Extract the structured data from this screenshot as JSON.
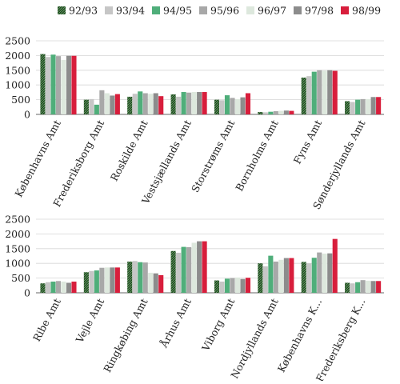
{
  "colors": {
    "92/93": "#2e5a2e",
    "93/94": "#c6c6c6",
    "94/95": "#4fae7a",
    "95/96": "#a8a8a8",
    "96/97": "#dde8dd",
    "97/98": "#8c8c8c",
    "98/99": "#d81e3c"
  },
  "chart_data": [
    {
      "type": "bar",
      "panel": "top",
      "series_names": [
        "92/93",
        "93/94",
        "94/95",
        "95/96",
        "96/97",
        "97/98",
        "98/99"
      ],
      "categories": [
        "Københavns Amt",
        "Frederiksborg Amt",
        "Roskilde Amt",
        "Vestsjællands Amt",
        "Storstrøms Amt",
        "Bornholms Amt",
        "Fyns Amt",
        "Sønderjyllands Amt"
      ],
      "series": [
        {
          "name": "92/93",
          "values": [
            2050,
            500,
            600,
            680,
            500,
            80,
            1250,
            450
          ]
        },
        {
          "name": "93/94",
          "values": [
            1950,
            520,
            700,
            600,
            480,
            70,
            1300,
            420
          ]
        },
        {
          "name": "94/95",
          "values": [
            2030,
            330,
            780,
            760,
            650,
            90,
            1450,
            500
          ]
        },
        {
          "name": "95/96",
          "values": [
            1980,
            820,
            720,
            740,
            560,
            110,
            1500,
            520
          ]
        },
        {
          "name": "96/97",
          "values": [
            1850,
            720,
            700,
            760,
            520,
            120,
            1480,
            520
          ]
        },
        {
          "name": "97/98",
          "values": [
            1990,
            640,
            720,
            760,
            580,
            130,
            1500,
            590
          ]
        },
        {
          "name": "98/99",
          "values": [
            1990,
            690,
            620,
            760,
            720,
            120,
            1480,
            590
          ]
        }
      ],
      "y_ticks": [
        "0",
        "500",
        "1000",
        "1500",
        "2000",
        "2500"
      ],
      "ylim": [
        0,
        2500
      ],
      "legend": "top"
    },
    {
      "type": "bar",
      "panel": "bottom",
      "categories": [
        "Ribe Amt",
        "Vejle Amt",
        "Ringkøbing Amt",
        "Århus Amt",
        "Viborg Amt",
        "Nordjyllands Amt",
        "Københavns K...",
        "Frederiksberg K..."
      ],
      "series": [
        {
          "name": "92/93",
          "values": [
            320,
            700,
            1060,
            1420,
            420,
            1000,
            1050,
            340
          ]
        },
        {
          "name": "93/94",
          "values": [
            360,
            740,
            1080,
            1360,
            380,
            900,
            1000,
            320
          ]
        },
        {
          "name": "94/95",
          "values": [
            380,
            760,
            1040,
            1560,
            480,
            1260,
            1190,
            360
          ]
        },
        {
          "name": "95/96",
          "values": [
            400,
            850,
            1030,
            1550,
            500,
            1060,
            1370,
            430
          ]
        },
        {
          "name": "96/97",
          "values": [
            380,
            860,
            680,
            1700,
            520,
            1120,
            1330,
            410
          ]
        },
        {
          "name": "97/98",
          "values": [
            340,
            860,
            660,
            1750,
            470,
            1180,
            1340,
            400
          ]
        },
        {
          "name": "98/99",
          "values": [
            380,
            860,
            600,
            1750,
            510,
            1180,
            1830,
            400
          ]
        }
      ],
      "y_ticks": [
        "0",
        "500",
        "1000",
        "1500",
        "2000",
        "2500"
      ],
      "ylim": [
        0,
        2500
      ]
    }
  ]
}
